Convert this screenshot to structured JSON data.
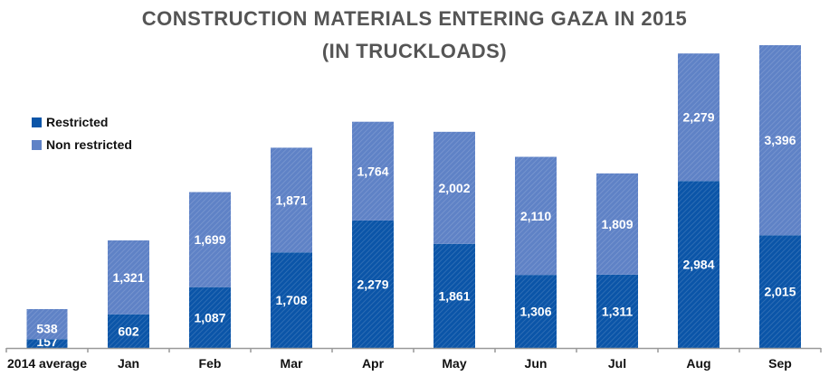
{
  "chart_data": {
    "type": "bar",
    "stacked": true,
    "title": "CONSTRUCTION MATERIALS  ENTERING GAZA IN 2015",
    "subtitle": "(IN TRUCKLOADS)",
    "categories": [
      "2014 average",
      "Jan",
      "Feb",
      "Mar",
      "Apr",
      "May",
      "Jun",
      "Jul",
      "Aug",
      "Sep"
    ],
    "series": [
      {
        "name": "Restricted",
        "color": "#0b55a8",
        "values": [
          157,
          602,
          1087,
          1708,
          2279,
          1861,
          1306,
          1311,
          2984,
          2015
        ]
      },
      {
        "name": "Non restricted",
        "color": "#5f82c6",
        "values": [
          538,
          1321,
          1699,
          1871,
          1764,
          2002,
          2110,
          1809,
          2279,
          3396
        ]
      }
    ],
    "ylim": [
      0,
      5411
    ],
    "grid": false,
    "legend_position": "top-left"
  }
}
